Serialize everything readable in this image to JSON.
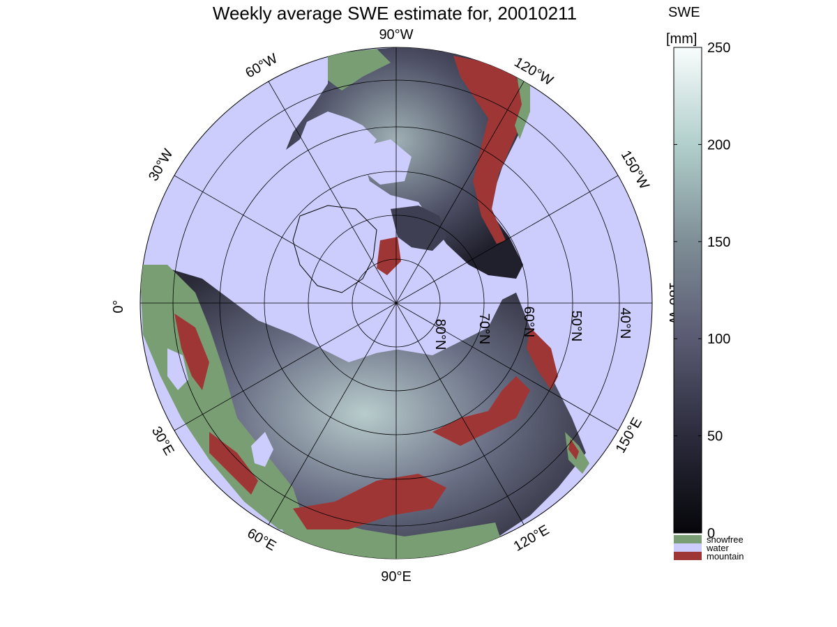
{
  "title": "Weekly average SWE estimate for, 20010211",
  "colorbar": {
    "label_line1": "SWE",
    "label_line2": "[mm]",
    "ticks": [
      0,
      50,
      100,
      150,
      200,
      250
    ],
    "range": [
      0,
      250
    ]
  },
  "legend": [
    {
      "label": "snowfree",
      "color": "#7a9e74"
    },
    {
      "label": "water",
      "color": "#ccccfd"
    },
    {
      "label": "mountain",
      "color": "#9f3636"
    }
  ],
  "longitude_labels": {
    "lon_90W": "90°W",
    "lon_120W": "120°W",
    "lon_150W": "150°W",
    "lon_180W": "180°W",
    "lon_150E": "150°E",
    "lon_120E": "120°E",
    "lon_90E": "90°E",
    "lon_60E": "60°E",
    "lon_30E": "30°E",
    "lon_0": "0°",
    "lon_30W": "30°W",
    "lon_60W": "60°W"
  },
  "latitude_labels": [
    "80°N",
    "70°N",
    "60°N",
    "50°N",
    "40°N"
  ],
  "colors": {
    "water": "#ccccfd",
    "snowfree": "#7a9e74",
    "mountain": "#9f3636",
    "swe_low": "#0b0b12",
    "swe_mid": "#55556f",
    "swe_high": "#f6fbfb"
  }
}
